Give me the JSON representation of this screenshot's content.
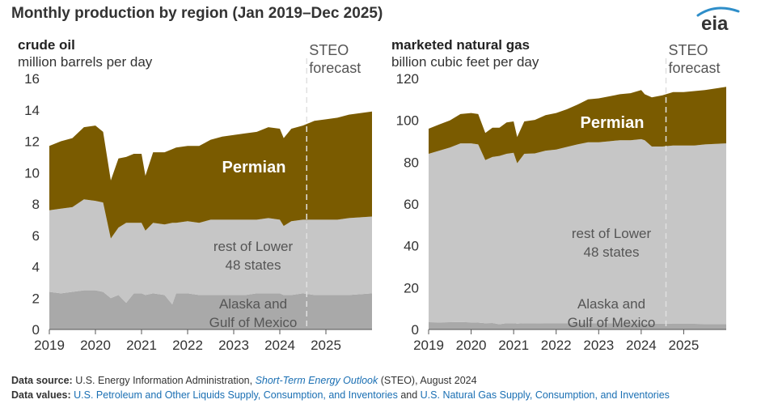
{
  "title": "Monthly production by region (Jan 2019–Dec 2025)",
  "logo_text": "eia",
  "colors": {
    "permian": "#7a5b00",
    "rest_lower48": "#c6c6c6",
    "alaska_gom": "#a9a9a9",
    "forecast_line": "#e0e0e0",
    "axis_text": "#333333",
    "link": "#1a6fb3",
    "logo_arc": "#2e8ec9"
  },
  "footer": {
    "source_label": "Data source:",
    "source_text": "U.S. Energy Information Administration,",
    "source_link": "Short-Term Energy Outlook",
    "source_tail": "(STEO), August 2024",
    "values_label": "Data values:",
    "values_link1": "U.S. Petroleum and Other Liquids Supply, Consumption, and Inventories",
    "values_and": "and",
    "values_link2": "U.S. Natural Gas Supply, Consumption, and Inventories"
  },
  "chart_data": [
    {
      "type": "area",
      "stacked": true,
      "title": "crude oil",
      "ylabel": "million barrels per day",
      "ylim": [
        0,
        16
      ],
      "yticks": [
        0,
        2,
        4,
        6,
        8,
        10,
        12,
        14,
        16
      ],
      "xlim": [
        "2019-01",
        "2025-12"
      ],
      "xticks": [
        "2019",
        "2020",
        "2021",
        "2022",
        "2023",
        "2024",
        "2025"
      ],
      "forecast_start": "2024-08",
      "forecast_label": [
        "STEO",
        "forecast"
      ],
      "x": [
        "2019-01",
        "2019-04",
        "2019-07",
        "2019-10",
        "2020-01",
        "2020-03",
        "2020-05",
        "2020-07",
        "2020-09",
        "2020-11",
        "2021-01",
        "2021-02",
        "2021-04",
        "2021-07",
        "2021-09",
        "2021-10",
        "2022-01",
        "2022-04",
        "2022-07",
        "2022-10",
        "2023-01",
        "2023-04",
        "2023-07",
        "2023-10",
        "2024-01",
        "2024-02",
        "2024-04",
        "2024-07",
        "2024-10",
        "2025-01",
        "2025-04",
        "2025-07",
        "2025-12"
      ],
      "series": [
        {
          "name": "Alaska and Gulf of Mexico",
          "label_lines": [
            "Alaska and",
            "Gulf of Mexico"
          ],
          "values": [
            2.4,
            2.3,
            2.4,
            2.5,
            2.5,
            2.4,
            2.0,
            2.2,
            1.7,
            2.3,
            2.3,
            2.2,
            2.3,
            2.2,
            1.6,
            2.3,
            2.3,
            2.2,
            2.2,
            2.2,
            2.2,
            2.2,
            2.3,
            2.3,
            2.3,
            2.2,
            2.2,
            2.3,
            2.2,
            2.2,
            2.2,
            2.2,
            2.3
          ]
        },
        {
          "name": "rest of Lower 48 states",
          "label_lines": [
            "rest of Lower",
            "48 states"
          ],
          "values": [
            5.2,
            5.4,
            5.4,
            5.8,
            5.7,
            5.7,
            3.8,
            4.3,
            5.1,
            4.5,
            4.5,
            4.1,
            4.5,
            4.5,
            5.2,
            4.5,
            4.6,
            4.6,
            4.8,
            4.8,
            4.8,
            4.8,
            4.7,
            4.8,
            4.7,
            4.4,
            4.7,
            4.7,
            4.8,
            4.8,
            4.8,
            4.9,
            4.9
          ]
        },
        {
          "name": "Permian",
          "label_lines": [
            "Permian"
          ],
          "values": [
            4.1,
            4.3,
            4.4,
            4.6,
            4.8,
            4.5,
            3.7,
            4.4,
            4.2,
            4.4,
            4.4,
            3.5,
            4.5,
            4.6,
            4.7,
            4.8,
            4.8,
            4.9,
            5.1,
            5.3,
            5.4,
            5.5,
            5.6,
            5.8,
            5.8,
            5.6,
            5.9,
            6.0,
            6.3,
            6.4,
            6.5,
            6.6,
            6.7
          ]
        }
      ]
    },
    {
      "type": "area",
      "stacked": true,
      "title": "marketed natural gas",
      "ylabel": "billion cubic feet per day",
      "ylim": [
        0,
        120
      ],
      "yticks": [
        0,
        20,
        40,
        60,
        80,
        100,
        120
      ],
      "xlim": [
        "2019-01",
        "2025-12"
      ],
      "xticks": [
        "2019",
        "2020",
        "2021",
        "2022",
        "2023",
        "2024",
        "2025"
      ],
      "forecast_start": "2024-08",
      "forecast_label": [
        "STEO",
        "forecast"
      ],
      "x": [
        "2019-01",
        "2019-04",
        "2019-07",
        "2019-10",
        "2020-01",
        "2020-03",
        "2020-05",
        "2020-07",
        "2020-09",
        "2020-11",
        "2021-01",
        "2021-02",
        "2021-04",
        "2021-07",
        "2021-10",
        "2022-01",
        "2022-04",
        "2022-07",
        "2022-10",
        "2023-01",
        "2023-04",
        "2023-07",
        "2023-10",
        "2024-01",
        "2024-02",
        "2024-04",
        "2024-07",
        "2024-10",
        "2025-01",
        "2025-04",
        "2025-07",
        "2025-12"
      ],
      "series": [
        {
          "name": "Alaska and Gulf of Mexico",
          "label_lines": [
            "Alaska and",
            "Gulf of Mexico"
          ],
          "values": [
            3.5,
            3.4,
            3.5,
            3.6,
            3.4,
            3.3,
            3.0,
            3.1,
            2.5,
            3.0,
            3.0,
            2.8,
            3.0,
            3.0,
            2.9,
            2.9,
            2.9,
            2.9,
            2.9,
            2.9,
            2.9,
            2.9,
            2.9,
            2.9,
            2.8,
            2.8,
            2.8,
            2.7,
            2.7,
            2.7,
            2.6,
            2.6
          ]
        },
        {
          "name": "rest of Lower 48 states",
          "label_lines": [
            "rest of Lower",
            "48 states"
          ],
          "values": [
            80.5,
            82.1,
            83.5,
            85.4,
            85.6,
            85.2,
            78.0,
            79.4,
            80.5,
            81.0,
            81.5,
            76.7,
            81.0,
            81.2,
            82.6,
            83.1,
            84.4,
            85.6,
            86.6,
            86.6,
            87.1,
            87.6,
            87.6,
            88.1,
            87.7,
            84.7,
            84.7,
            85.3,
            85.3,
            85.3,
            85.9,
            86.4
          ]
        },
        {
          "name": "Permian",
          "label_lines": [
            "Permian"
          ],
          "values": [
            12.0,
            12.5,
            13.0,
            14.0,
            14.5,
            14.5,
            13.0,
            14.0,
            13.5,
            15.0,
            15.0,
            12.5,
            15.5,
            16.0,
            17.0,
            17.5,
            18.0,
            19.0,
            20.5,
            21.0,
            21.5,
            22.0,
            22.5,
            23.5,
            22.0,
            23.5,
            24.5,
            25.5,
            25.5,
            26.0,
            26.0,
            27.0
          ]
        }
      ]
    }
  ]
}
